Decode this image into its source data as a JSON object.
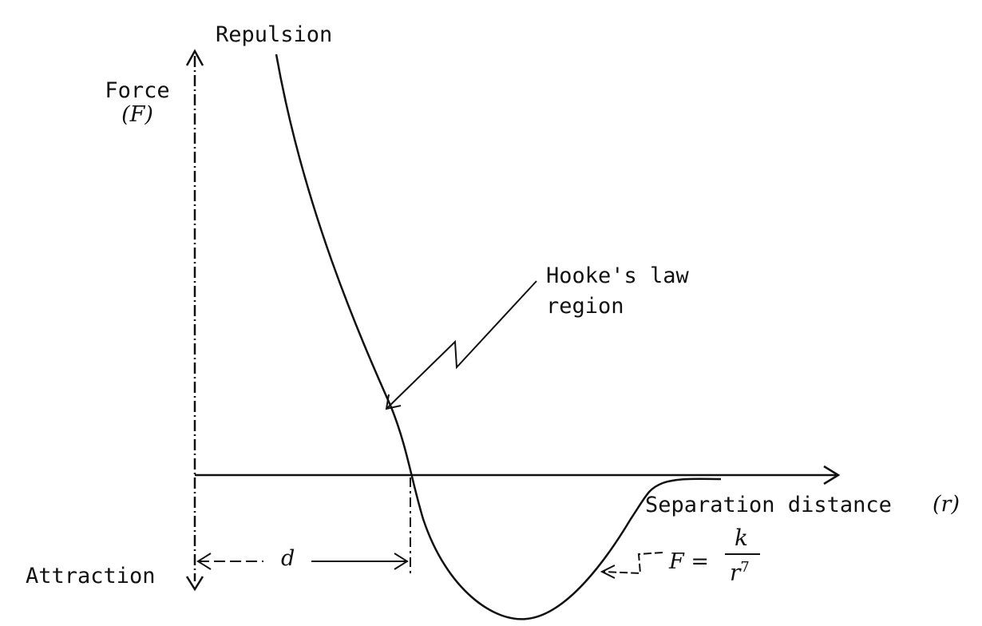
{
  "labels": {
    "repulsion": "Repulsion",
    "force": "Force",
    "force_symbol": "(F)",
    "attraction": "Attraction",
    "hooke_line1": "Hooke's law",
    "hooke_line2": "region",
    "separation": "Separation distance",
    "separation_symbol": "(r)",
    "d": "d",
    "formula_lhs": "F =",
    "formula_num": "k",
    "formula_den_base": "r",
    "formula_den_exp": "7"
  },
  "colors": {
    "ink": "#111111",
    "background": "#ffffff"
  }
}
